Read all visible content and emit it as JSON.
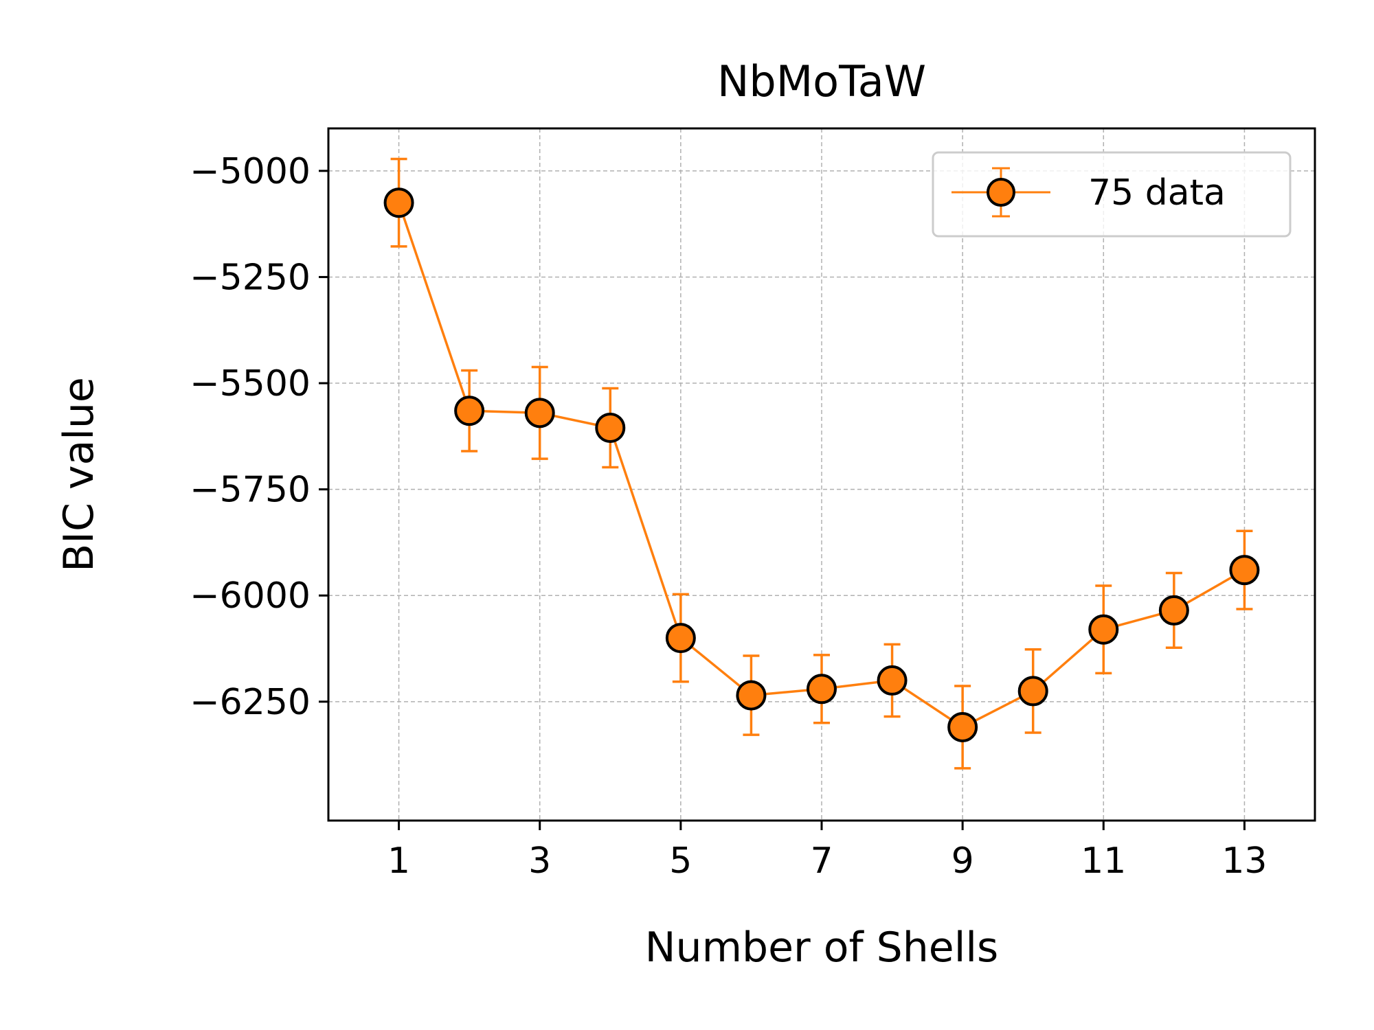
{
  "chart_data": {
    "type": "line",
    "title": "NbMoTaW",
    "xlabel": "Number of Shells",
    "ylabel": "BIC value",
    "xlim": [
      0,
      14
    ],
    "ylim": [
      -6530,
      -4900
    ],
    "x_ticks": [
      1,
      3,
      5,
      7,
      9,
      11,
      13
    ],
    "x_tick_labels": [
      "1",
      "3",
      "5",
      "7",
      "9",
      "11",
      "13"
    ],
    "y_ticks": [
      -5000,
      -5250,
      -5500,
      -5750,
      -6000,
      -6250
    ],
    "y_tick_labels": [
      "−5000",
      "−5250",
      "−5500",
      "−5750",
      "−6000",
      "−6250"
    ],
    "grid": true,
    "legend_position": "top-right",
    "series": [
      {
        "name": "75 data",
        "color": "#ff7f0e",
        "marker_edge": "#000000",
        "x": [
          1,
          2,
          3,
          4,
          5,
          6,
          7,
          8,
          9,
          10,
          11,
          12,
          13
        ],
        "y": [
          -5075,
          -5565,
          -5570,
          -5605,
          -6100,
          -6235,
          -6220,
          -6200,
          -6310,
          -6225,
          -6080,
          -6035,
          -5940
        ],
        "yerr": [
          103,
          95,
          108,
          93,
          103,
          93,
          80,
          85,
          97,
          98,
          103,
          88,
          92
        ]
      }
    ]
  }
}
